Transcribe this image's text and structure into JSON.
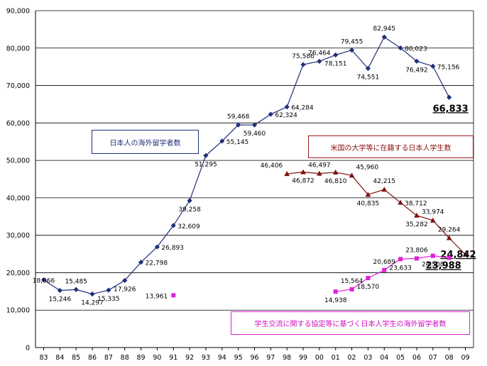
{
  "chart_data": {
    "type": "line",
    "title": "",
    "xlabel": "",
    "ylabel": "",
    "ylim": [
      0,
      90000
    ],
    "y_ticks": [
      "0",
      "10,000",
      "20,000",
      "30,000",
      "40,000",
      "50,000",
      "60,000",
      "70,000",
      "80,000",
      "90,000"
    ],
    "categories": [
      "83",
      "84",
      "85",
      "86",
      "87",
      "88",
      "89",
      "90",
      "91",
      "92",
      "93",
      "94",
      "95",
      "96",
      "97",
      "98",
      "99",
      "00",
      "01",
      "02",
      "03",
      "04",
      "05",
      "06",
      "07",
      "08",
      "09"
    ],
    "grid": "horizontal",
    "series": [
      {
        "name": "日本人の海外留学者数",
        "color": "#1f2f7a",
        "marker": "diamond",
        "values": [
          18066,
          15246,
          15485,
          14297,
          15335,
          17926,
          22798,
          26893,
          32609,
          39258,
          51295,
          55145,
          59468,
          59460,
          62324,
          64284,
          75586,
          76464,
          78151,
          79455,
          74551,
          82945,
          80023,
          76492,
          75156,
          66833,
          null
        ],
        "labels": [
          "18,066",
          "15,246",
          "15,485",
          "14,297",
          "15,335",
          "17,926",
          "22,798",
          "26,893",
          "32,609",
          "39,258",
          "51,295",
          "55,145",
          "59,468",
          "59,460",
          "62,324",
          "64,284",
          "75,586",
          "76,464",
          "78,151",
          "79,455",
          "74,551",
          "82,945",
          "80,023",
          "76,492",
          "75,156",
          "66,833",
          null
        ]
      },
      {
        "name": "米国の大学等に在籍する日本人学生数",
        "color": "#7a1010",
        "marker": "triangle",
        "values": [
          null,
          null,
          null,
          null,
          null,
          null,
          null,
          null,
          null,
          null,
          null,
          null,
          null,
          null,
          null,
          46406,
          46872,
          46497,
          46810,
          45960,
          40835,
          42215,
          38712,
          35282,
          33974,
          29264,
          24842
        ],
        "labels": [
          null,
          null,
          null,
          null,
          null,
          null,
          null,
          null,
          null,
          null,
          null,
          null,
          null,
          null,
          null,
          "46,406",
          "46,872",
          "46,497",
          "46,810",
          "45,960",
          "40,835",
          "42,215",
          "38,712",
          "35,282",
          "33,974",
          "29,264",
          "24,842"
        ]
      },
      {
        "name": "学生交流に関する協定等に基づく日本人学生の海外留学者数",
        "color": "#e020d8",
        "marker": "square",
        "values": [
          null,
          null,
          null,
          null,
          null,
          null,
          null,
          null,
          13961,
          null,
          null,
          null,
          null,
          null,
          null,
          null,
          null,
          null,
          14938,
          15564,
          18570,
          20689,
          23633,
          23806,
          24508,
          23988,
          null
        ],
        "labels": [
          null,
          null,
          null,
          null,
          null,
          null,
          null,
          null,
          "13,961",
          null,
          null,
          null,
          null,
          null,
          null,
          null,
          null,
          null,
          "14,938",
          "15,564",
          "18,570",
          "20,689",
          "23,633",
          "23,806",
          "24,508",
          "23,988",
          null
        ]
      }
    ]
  }
}
